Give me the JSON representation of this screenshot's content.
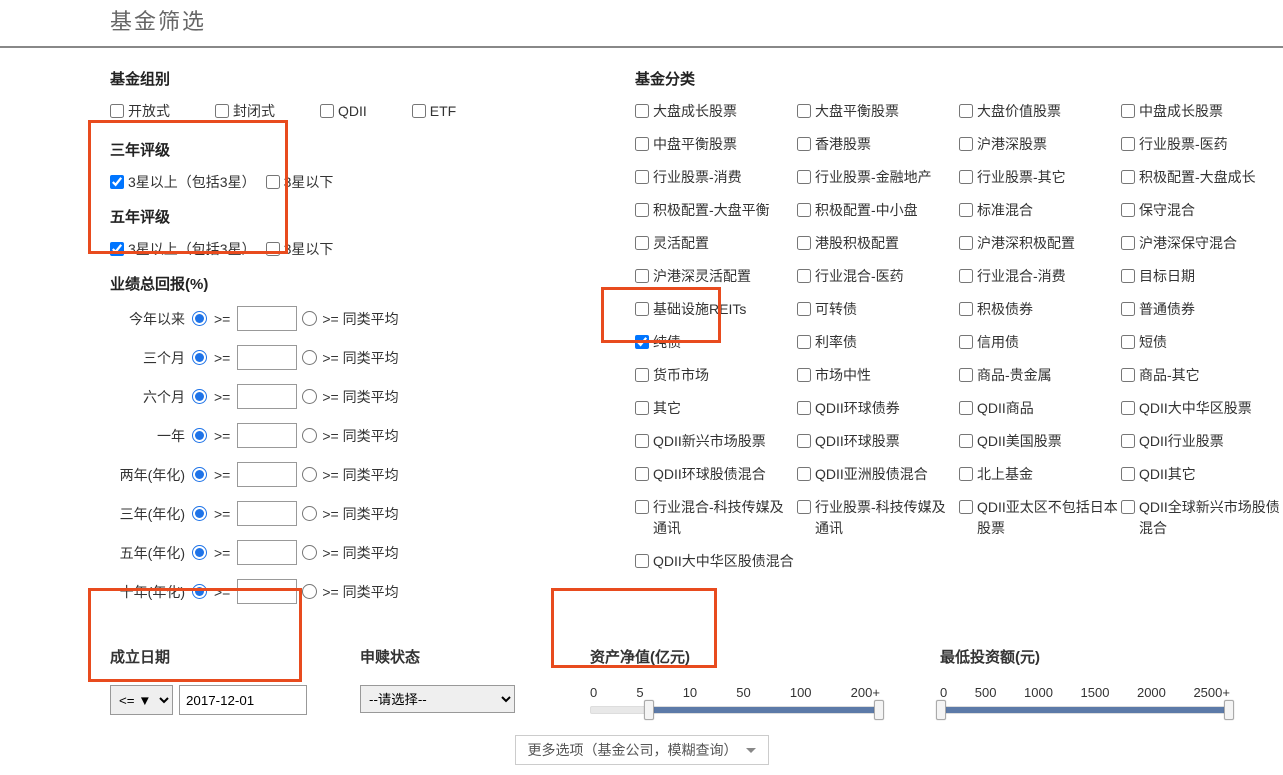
{
  "title": "基金筛选",
  "fundGroup": {
    "title": "基金组别",
    "items": [
      {
        "label": "开放式"
      },
      {
        "label": "封闭式"
      },
      {
        "label": "QDII"
      },
      {
        "label": "ETF"
      }
    ]
  },
  "rating3": {
    "title": "三年评级",
    "opt1": "3星以上（包括3星）",
    "opt2": "3星以下"
  },
  "rating5": {
    "title": "五年评级",
    "opt1": "3星以上（包括3星）",
    "opt2": "3星以下"
  },
  "returns": {
    "title": "业绩总回报(%)",
    "ge": ">=",
    "avg": ">= 同类平均",
    "rows": [
      {
        "label": "今年以来"
      },
      {
        "label": "三个月"
      },
      {
        "label": "六个月"
      },
      {
        "label": "一年"
      },
      {
        "label": "两年(年化)"
      },
      {
        "label": "三年(年化)"
      },
      {
        "label": "五年(年化)"
      },
      {
        "label": "十年(年化)"
      }
    ]
  },
  "category": {
    "title": "基金分类",
    "items": [
      "大盘成长股票",
      "大盘平衡股票",
      "大盘价值股票",
      "中盘成长股票",
      "中盘平衡股票",
      "香港股票",
      "沪港深股票",
      "行业股票-医药",
      "行业股票-消费",
      "行业股票-金融地产",
      "行业股票-其它",
      "积极配置-大盘成长",
      "积极配置-大盘平衡",
      "积极配置-中小盘",
      "标准混合",
      "保守混合",
      "灵活配置",
      "港股积极配置",
      "沪港深积极配置",
      "沪港深保守混合",
      "沪港深灵活配置",
      "行业混合-医药",
      "行业混合-消费",
      "目标日期",
      "基础设施REITs",
      "可转债",
      "积极债券",
      "普通债券",
      "纯债",
      "利率债",
      "信用债",
      "短债",
      "货币市场",
      "市场中性",
      "商品-贵金属",
      "商品-其它",
      "其它",
      "QDII环球债券",
      "QDII商品",
      "QDII大中华区股票",
      "QDII新兴市场股票",
      "QDII环球股票",
      "QDII美国股票",
      "QDII行业股票",
      "QDII环球股债混合",
      "QDII亚洲股债混合",
      "北上基金",
      "QDII其它",
      "行业混合-科技传媒及通讯",
      "行业股票-科技传媒及通讯",
      "QDII亚太区不包括日本股票",
      "QDII全球新兴市场股债混合",
      "QDII大中华区股债混合"
    ],
    "checked": [
      "纯债"
    ]
  },
  "inception": {
    "title": "成立日期",
    "op": "<= ▼",
    "date": "2017-12-01"
  },
  "status": {
    "title": "申赎状态",
    "placeholder": "--请选择--"
  },
  "nav": {
    "title": "资产净值(亿元)",
    "ticks": [
      "0",
      "5",
      "10",
      "50",
      "100",
      "200+"
    ],
    "fillLeft": 20,
    "fillRight": 100,
    "handle1": 20,
    "handle2": 100
  },
  "minInvest": {
    "title": "最低投资额(元)",
    "ticks": [
      "0",
      "500",
      "1000",
      "1500",
      "2000",
      "2500+"
    ],
    "fillLeft": 0,
    "fillRight": 100,
    "handle1": 0,
    "handle2": 100
  },
  "more": {
    "label": "更多选项（基金公司，模糊查询）"
  }
}
